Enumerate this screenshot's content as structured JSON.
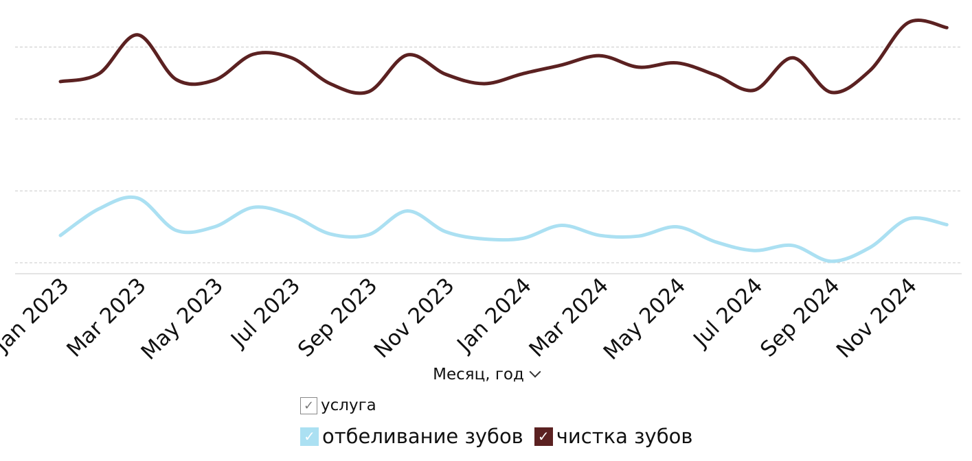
{
  "chart_data": {
    "type": "line",
    "categories": [
      "Jan 2023",
      "Feb 2023",
      "Mar 2023",
      "Apr 2023",
      "May 2023",
      "Jun 2023",
      "Jul 2023",
      "Aug 2023",
      "Sep 2023",
      "Oct 2023",
      "Nov 2023",
      "Dec 2023",
      "Jan 2024",
      "Feb 2024",
      "Mar 2024",
      "Apr 2024",
      "May 2024",
      "Jun 2024",
      "Jul 2024",
      "Aug 2024",
      "Sep 2024",
      "Oct 2024",
      "Nov 2024",
      "Dec 2024"
    ],
    "tick_labels": [
      "Jan 2023",
      "Mar 2023",
      "May 2023",
      "Jul 2023",
      "Sep 2023",
      "Nov 2023",
      "Jan 2024",
      "Mar 2024",
      "May 2024",
      "Jul 2024",
      "Sep 2024",
      "Nov 2024"
    ],
    "xlabel": "Месяц, год",
    "ylim": [
      0,
      3.05
    ],
    "gridlines": [
      0,
      1,
      2,
      3
    ],
    "grid": true,
    "legend_placement": "bottom-center",
    "series": [
      {
        "name": "отбеливание зубов",
        "color": "#abe0f2",
        "values": [
          0.38,
          0.75,
          0.9,
          0.45,
          0.5,
          0.77,
          0.66,
          0.4,
          0.39,
          0.72,
          0.43,
          0.33,
          0.34,
          0.52,
          0.38,
          0.37,
          0.5,
          0.29,
          0.17,
          0.24,
          0.02,
          0.21,
          0.61,
          0.53
        ]
      },
      {
        "name": "чистка зубов",
        "color": "#5b2121",
        "values": [
          2.52,
          2.63,
          3.17,
          2.55,
          2.54,
          2.9,
          2.85,
          2.49,
          2.38,
          2.89,
          2.62,
          2.49,
          2.63,
          2.75,
          2.88,
          2.72,
          2.78,
          2.61,
          2.4,
          2.85,
          2.37,
          2.67,
          3.34,
          3.27
        ]
      }
    ]
  },
  "legend": {
    "title": "услуга",
    "check_glyph": "✓",
    "items": [
      {
        "label": "отбеливание зубов",
        "color": "#abe0f2",
        "check": "✓"
      },
      {
        "label": "чистка зубов",
        "color": "#5b2121",
        "check": "✓"
      }
    ]
  }
}
